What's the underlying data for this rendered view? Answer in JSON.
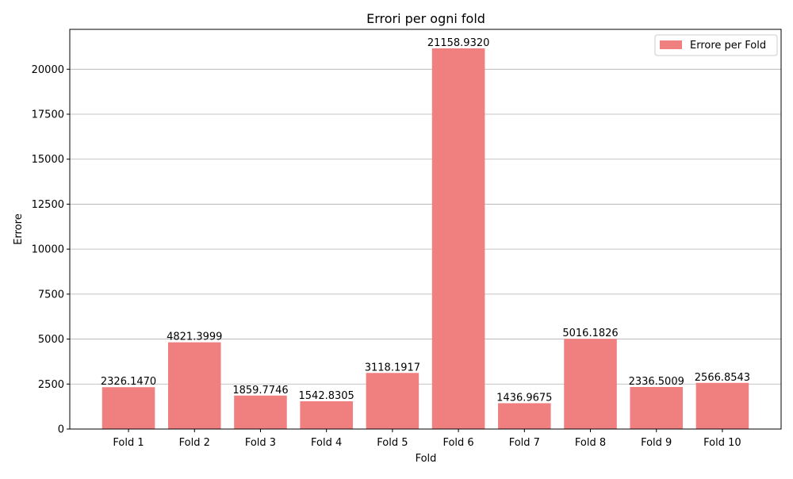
{
  "chart_data": {
    "type": "bar",
    "title": "Errori per ogni fold",
    "xlabel": "Fold",
    "ylabel": "Errore",
    "categories": [
      "Fold 1",
      "Fold 2",
      "Fold 3",
      "Fold 4",
      "Fold 5",
      "Fold 6",
      "Fold 7",
      "Fold 8",
      "Fold 9",
      "Fold 10"
    ],
    "values": [
      2326.147,
      4821.3999,
      1859.7746,
      1542.8305,
      3118.1917,
      21158.932,
      1436.9675,
      5016.1826,
      2336.5009,
      2566.8543
    ],
    "value_labels": [
      "2326.1470",
      "4821.3999",
      "1859.7746",
      "1542.8305",
      "3118.1917",
      "21158.9320",
      "1436.9675",
      "5016.1826",
      "2336.5009",
      "2566.8543"
    ],
    "series": [
      {
        "name": "Errore per Fold",
        "color": "#f08080"
      }
    ],
    "ylim": [
      0,
      22216.88
    ],
    "yticks": [
      0,
      2500,
      5000,
      7500,
      10000,
      12500,
      15000,
      17500,
      20000
    ],
    "grid": "y",
    "legend_position": "upper right"
  }
}
